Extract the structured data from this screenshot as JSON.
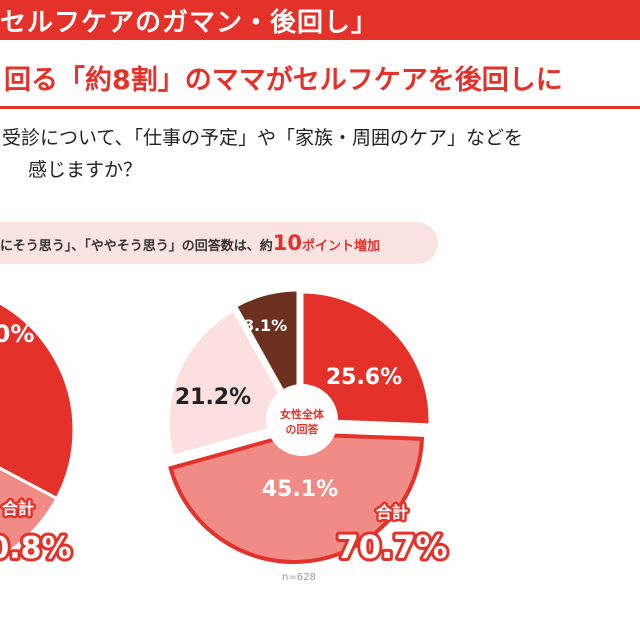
{
  "header": {
    "banner_title": "セルフケアのガマン・後回し」",
    "headline": "回る「約8割」のママがセルフケアを後回しに"
  },
  "question": {
    "line1": "受診について、「仕事の予定」や「家族・周囲のケア」などを",
    "line2": "感じますか？"
  },
  "callout": {
    "part1": "にそう思う」、「ややそう思う」の回答数は、約",
    "number": "10",
    "part2": "ポイント増加"
  },
  "colors": {
    "red": "#e4322b",
    "salmon": "#f08b86",
    "pink": "#fbe0df",
    "brown": "#6b3020"
  },
  "chart_data": [
    {
      "type": "pie",
      "labels": [
        "0%",
        "合計",
        "0.8%"
      ]
    },
    {
      "type": "pie",
      "center_label": "女性全体の回答",
      "slices": [
        {
          "value": 25.6,
          "label": "25.6%"
        },
        {
          "value": 45.1,
          "label": "45.1%"
        },
        {
          "value": 21.2,
          "label": "21.2%"
        },
        {
          "value": 8.1,
          "label": "8.1%"
        }
      ],
      "total_label": "合計",
      "total_value": "70.7%",
      "n_label": "n=628"
    }
  ]
}
